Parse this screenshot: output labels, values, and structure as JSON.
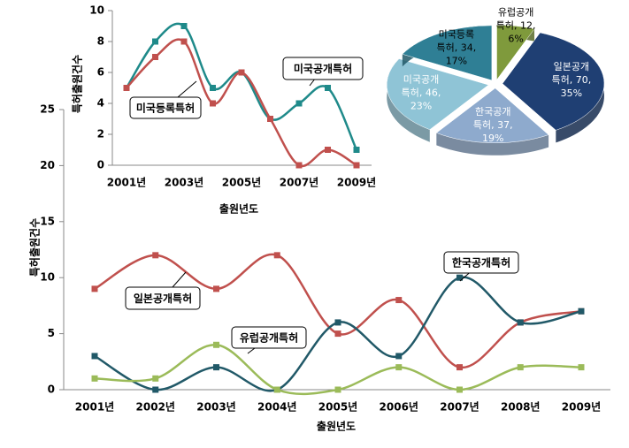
{
  "chart_data": [
    {
      "type": "line",
      "x_label": "출원년도",
      "y_label": "특허출원건수",
      "categories": [
        "2001년",
        null,
        "2003년",
        null,
        "2005년",
        null,
        "2007년",
        null,
        "2009년"
      ],
      "ylim": [
        0,
        10
      ],
      "yticks": [
        0,
        2,
        4,
        6,
        8,
        10
      ],
      "series": [
        {
          "name": "미국공개특허",
          "color": "#1f8a8a",
          "values": [
            5,
            8,
            9,
            5,
            6,
            3,
            4,
            5,
            1
          ]
        },
        {
          "name": "미국등록특허",
          "color": "#c0504d",
          "values": [
            5,
            7,
            8,
            4,
            6,
            3,
            0,
            1,
            0
          ]
        }
      ]
    },
    {
      "type": "pie",
      "categories": [
        "유럽공개특허",
        "일본공개특허",
        "한국공개특허",
        "미국공개특허",
        "미국등록특허"
      ],
      "values": [
        12,
        70,
        37,
        46,
        34
      ],
      "value_labels": [
        "유럽공개\n특허, 12,\n6%",
        "일본공개\n특허, 70,\n35%",
        "한국공개\n특허, 37,\n19%",
        "미국공개\n특허, 46,\n23%",
        "미국등록\n특허, 34,\n17%"
      ],
      "colors": [
        "#7f9a3c",
        "#1f3f73",
        "#8eaacd",
        "#8fc4d6",
        "#2f7f95"
      ]
    },
    {
      "type": "line",
      "x_label": "출원년도",
      "y_label": "특허출원건수",
      "categories": [
        "2001년",
        "2002년",
        "2003년",
        "2004년",
        "2005년",
        "2006년",
        "2007년",
        "2008년",
        "2009년"
      ],
      "ylim": [
        0,
        25
      ],
      "yticks": [
        0,
        5,
        10,
        15,
        20,
        25
      ],
      "series": [
        {
          "name": "일본공개특허",
          "color": "#c0504d",
          "values": [
            9,
            12,
            9,
            12,
            5,
            8,
            2,
            6,
            7
          ]
        },
        {
          "name": "한국공개특허",
          "color": "#215968",
          "values": [
            3,
            0,
            2,
            0,
            6,
            3,
            10,
            6,
            7
          ]
        },
        {
          "name": "유럽공개특허",
          "color": "#9bbb59",
          "values": [
            1,
            1,
            4,
            0,
            0,
            2,
            0,
            2,
            2
          ]
        }
      ]
    }
  ]
}
